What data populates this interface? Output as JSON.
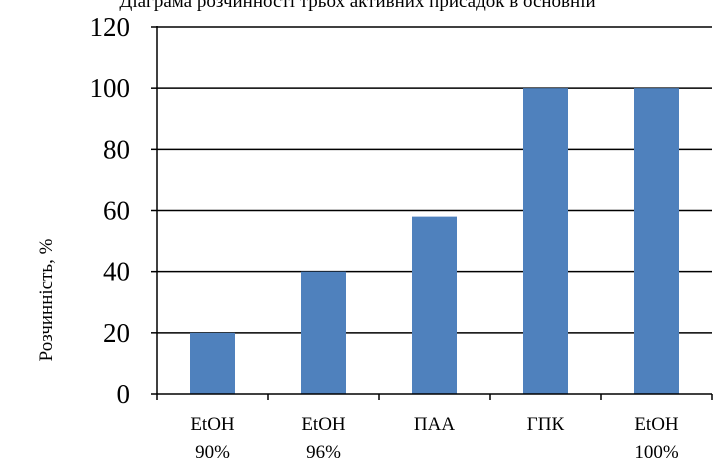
{
  "chart_data": {
    "type": "bar",
    "title": "Діаграма розчинності трьох активних присадок в основній",
    "ylabel": "Розчинність, %",
    "xlabel": "",
    "categories": [
      [
        "EtOH",
        "90%"
      ],
      [
        "EtOH",
        "96%"
      ],
      [
        "ПАА"
      ],
      [
        "ГПК"
      ],
      [
        "EtOH",
        "100%"
      ]
    ],
    "values": [
      20,
      40,
      58,
      100,
      100
    ],
    "ylim": [
      0,
      120
    ],
    "yticks": [
      0,
      20,
      40,
      60,
      80,
      100,
      120
    ],
    "grid": true,
    "legend": "none",
    "bar_color": "#4F81BD"
  }
}
